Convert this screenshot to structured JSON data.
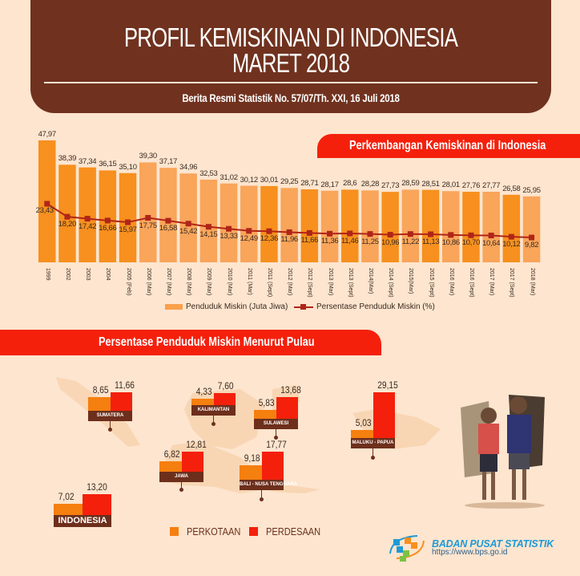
{
  "header": {
    "title_line1": "PROFIL KEMISKINAN DI INDONESIA",
    "title_line2": "MARET 2018",
    "subtitle": "Berita Resmi Statistik No. 57/07/Th. XXI, 16 Juli 2018"
  },
  "chart_section": {
    "title": "Perkembangan Kemiskinan di Indonesia",
    "legend": {
      "bars": "Penduduk Miskin (Juta Jiwa)",
      "line": "Persentase Penduduk Miskin (%)"
    }
  },
  "chart_data": [
    {
      "type": "bar",
      "title": "Perkembangan Kemiskinan di Indonesia",
      "xlabel": "",
      "ylabel": "",
      "grid": false,
      "legend_position": "bottom",
      "categories": [
        "1999",
        "2002",
        "2003",
        "2004",
        "2005 (Feb)",
        "2006 (Mar)",
        "2007 (Mar)",
        "2008 (Mar)",
        "2009 (Mar)",
        "2010 (Mar)",
        "2011 (Mar)",
        "2011 (Sept)",
        "2012 (Mar)",
        "2012 (Sept)",
        "2013 (Mar)",
        "2013 (Sept)",
        "2014(Mar)",
        "2014 (Sept)",
        "2015(Mar)",
        "2015 (Sept)",
        "2016 (Mar)",
        "2016 (Sept)",
        "2017 (Mar)",
        "2017 (Sept)",
        "2018 (Mar)"
      ],
      "series": [
        {
          "name": "Penduduk Miskin (Juta Jiwa)",
          "type": "bar",
          "values": [
            47.97,
            38.39,
            37.34,
            36.15,
            35.1,
            39.3,
            37.17,
            34.96,
            32.53,
            31.02,
            30.12,
            30.01,
            29.25,
            28.71,
            28.17,
            28.6,
            28.28,
            27.73,
            28.59,
            28.51,
            28.01,
            27.76,
            27.77,
            26.58,
            25.95
          ],
          "labels": [
            "47,97",
            "38,39",
            "37,34",
            "36,15",
            "35,10",
            "39,30",
            "37,17",
            "34,96",
            "32,53",
            "31,02",
            "30,12",
            "30,01",
            "29,25",
            "28,71",
            "28,17",
            "28,6",
            "28,28",
            "27,73",
            "28,59",
            "28,51",
            "28,01",
            "27,76",
            "27,77",
            "26,58",
            "25,95"
          ]
        },
        {
          "name": "Persentase Penduduk Miskin (%)",
          "type": "line",
          "values": [
            23.43,
            18.2,
            17.42,
            16.66,
            15.97,
            17.75,
            16.58,
            15.42,
            14.15,
            13.33,
            12.49,
            12.36,
            11.96,
            11.66,
            11.36,
            11.46,
            11.25,
            10.96,
            11.22,
            11.13,
            10.86,
            10.7,
            10.64,
            10.12,
            9.82
          ],
          "labels": [
            "23,43",
            "18,20",
            "17,42",
            "16,66",
            "15,97",
            "17,75",
            "16,58",
            "15,42",
            "14,15",
            "13,33",
            "12,49",
            "12,36",
            "11,96",
            "11,66",
            "11,36",
            "11,46",
            "11,25",
            "10,96",
            "11,22",
            "11,13",
            "10,86",
            "10,70",
            "10,64",
            "10,12",
            "9,82"
          ]
        }
      ],
      "bar_shade": [
        "dark",
        "dark",
        "dark",
        "dark",
        "dark",
        "light",
        "light",
        "light",
        "light",
        "light",
        "light",
        "dark",
        "light",
        "dark",
        "light",
        "dark",
        "light",
        "dark",
        "light",
        "dark",
        "light",
        "dark",
        "light",
        "dark",
        "light"
      ],
      "colors": {
        "bar_dark": "#f7901e",
        "bar_light": "#f9a55a",
        "line": "#b02518"
      }
    },
    {
      "type": "bar",
      "title": "Persentase Penduduk Miskin Menurut Pulau",
      "categories": [
        "Sumatera",
        "Kalimantan",
        "Sulawesi",
        "Jawa",
        "Bali - Nusa Tenggara",
        "Maluku - Papua",
        "Indonesia"
      ],
      "series": [
        {
          "name": "Perkotaan",
          "values": [
            8.65,
            4.33,
            5.83,
            6.82,
            9.18,
            5.03,
            7.02
          ]
        },
        {
          "name": "Perdesaan",
          "values": [
            11.66,
            7.6,
            13.68,
            12.81,
            17.77,
            29.15,
            13.2
          ]
        }
      ],
      "legend_position": "bottom",
      "colors": {
        "perkotaan": "#f57f0f",
        "perdesaan": "#f4200c"
      }
    }
  ],
  "pulau_section": {
    "title": "Persentase Penduduk Miskin Menurut Pulau",
    "islands": [
      {
        "name": "SUMATERA",
        "urban": "8,65",
        "rural": "11,66"
      },
      {
        "name": "KALIMANTAN",
        "urban": "4,33",
        "rural": "7,60"
      },
      {
        "name": "SULAWESI",
        "urban": "5,83",
        "rural": "13,68"
      },
      {
        "name": "JAWA",
        "urban": "6,82",
        "rural": "12,81"
      },
      {
        "name": "BALI - NUSA TENGGARA",
        "urban": "9,18",
        "rural": "17,77"
      },
      {
        "name": "MALUKU - PAPUA",
        "urban": "5,03",
        "rural": "29,15"
      },
      {
        "name": "INDONESIA",
        "urban": "7,02",
        "rural": "13,20"
      }
    ],
    "legend": {
      "urban": "PERKOTAAN",
      "rural": "PERDESAAN"
    }
  },
  "footer": {
    "org_name": "BADAN PUSAT STATISTIK",
    "url": "https://www.bps.go.id"
  }
}
